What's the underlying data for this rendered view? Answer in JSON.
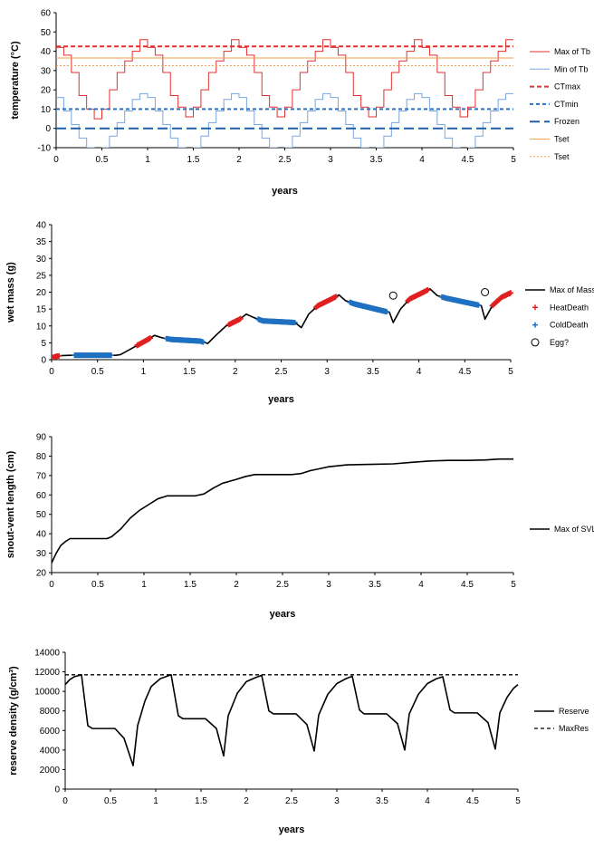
{
  "chart_data": [
    {
      "type": "line",
      "xlabel": "years",
      "ylabel": "temperature (°C)",
      "xlim": [
        0,
        5
      ],
      "ylim": [
        -10,
        60
      ],
      "xticks": [
        "0",
        "0.5",
        "1",
        "1.5",
        "2",
        "2.5",
        "3",
        "3.5",
        "4",
        "4.5",
        "5"
      ],
      "yticks": [
        "-10",
        "0",
        "10",
        "20",
        "30",
        "40",
        "50",
        "60"
      ],
      "legend_position": "right",
      "series": [
        {
          "name": "Max of Tb",
          "legend_label": "Max of Tb",
          "style": "step",
          "color": "#e03030",
          "x": [
            0,
            0.0833,
            0.1667,
            0.25,
            0.3333,
            0.4167,
            0.5,
            0.5833,
            0.6667,
            0.75,
            0.8333,
            0.9167,
            1.0,
            1.0833,
            1.1667,
            1.25,
            1.3333,
            1.4167,
            1.5,
            1.5833,
            1.6667,
            1.75,
            1.8333,
            1.9167,
            2.0,
            2.0833,
            2.1667,
            2.25,
            2.3333,
            2.4167,
            2.5,
            2.5833,
            2.6667,
            2.75,
            2.8333,
            2.9167,
            3.0,
            3.0833,
            3.1667,
            3.25,
            3.3333,
            3.4167,
            3.5,
            3.5833,
            3.6667,
            3.75,
            3.8333,
            3.9167,
            4.0,
            4.0833,
            4.1667,
            4.25,
            4.3333,
            4.4167,
            4.5,
            4.5833,
            4.6667,
            4.75,
            4.8333,
            4.9167,
            5.0
          ],
          "y": [
            42,
            38,
            29,
            17,
            10,
            5,
            10,
            20,
            29,
            35,
            40,
            46,
            42,
            38,
            29,
            17,
            11,
            6,
            11,
            20,
            29,
            35,
            40,
            46,
            42,
            38,
            29,
            17,
            11,
            6,
            11,
            20,
            29,
            35,
            40,
            46,
            42,
            38,
            29,
            17,
            11,
            6,
            11,
            20,
            29,
            35,
            40,
            46,
            42,
            38,
            29,
            17,
            11,
            6,
            11,
            20,
            29,
            35,
            40,
            46,
            46
          ]
        },
        {
          "name": "Min of Tb",
          "legend_label": "Min of Tb",
          "style": "step",
          "color": "#7aa6e0",
          "x": [
            0,
            0.0833,
            0.1667,
            0.25,
            0.3333,
            0.4167,
            0.5,
            0.5833,
            0.6667,
            0.75,
            0.8333,
            0.9167,
            1.0,
            1.0833,
            1.1667,
            1.25,
            1.3333,
            1.4167,
            1.5,
            1.5833,
            1.6667,
            1.75,
            1.8333,
            1.9167,
            2.0,
            2.0833,
            2.1667,
            2.25,
            2.3333,
            2.4167,
            2.5,
            2.5833,
            2.6667,
            2.75,
            2.8333,
            2.9167,
            3.0,
            3.0833,
            3.1667,
            3.25,
            3.3333,
            3.4167,
            3.5,
            3.5833,
            3.6667,
            3.75,
            3.8333,
            3.9167,
            4.0,
            4.0833,
            4.1667,
            4.25,
            4.3333,
            4.4167,
            4.5,
            4.5833,
            4.6667,
            4.75,
            4.8333,
            4.9167,
            5.0
          ],
          "y": [
            16,
            9,
            2,
            -5,
            -10,
            -13,
            -10,
            -4,
            3,
            9,
            15,
            18,
            16,
            9,
            2,
            -5,
            -10,
            -13,
            -10,
            -4,
            3,
            9,
            15,
            18,
            16,
            9,
            2,
            -5,
            -10,
            -13,
            -10,
            -4,
            3,
            9,
            15,
            18,
            16,
            9,
            2,
            -5,
            -10,
            -13,
            -10,
            -4,
            3,
            9,
            15,
            18,
            16,
            9,
            2,
            -5,
            -10,
            -13,
            -10,
            -4,
            3,
            9,
            15,
            18,
            18
          ]
        },
        {
          "name": "CTmax",
          "legend_label": "CTmax",
          "style": "hline",
          "dash": "5,3",
          "width": 2,
          "color": "#e03030",
          "y": 42.5
        },
        {
          "name": "CTmin",
          "legend_label": "CTmin",
          "style": "hline",
          "dash": "4,3",
          "width": 2,
          "color": "#2a6fc0",
          "y": 10
        },
        {
          "name": "Frozen",
          "legend_label": "Frozen",
          "style": "hline",
          "dash": "11,5",
          "width": 2,
          "color": "#1f5fa8",
          "y": 0
        },
        {
          "name": "Tset",
          "legend_label": "Tset",
          "style": "hline",
          "dash": "",
          "width": 1,
          "color": "#f0a050",
          "y": 36.5
        },
        {
          "name": "Tset",
          "legend_label": "Tset",
          "style": "hline",
          "dash": "2,2",
          "width": 1,
          "color": "#f0a050",
          "y": 32.5
        }
      ]
    },
    {
      "type": "line",
      "xlabel": "years",
      "ylabel": "wet mass (g)",
      "xlim": [
        0,
        5
      ],
      "ylim": [
        0,
        40
      ],
      "xticks": [
        "0",
        "0.5",
        "1",
        "1.5",
        "2",
        "2.5",
        "3",
        "3.5",
        "4",
        "4.5",
        "5"
      ],
      "yticks": [
        "0",
        "5",
        "10",
        "15",
        "20",
        "25",
        "30",
        "35",
        "40"
      ],
      "legend_position": "right",
      "series": [
        {
          "name": "Max of Mass",
          "legend_label": "Max of Mass",
          "style": "line",
          "color": "#000000",
          "x": [
            0,
            0.05,
            0.1,
            0.2,
            0.7,
            0.75,
            0.85,
            0.95,
            1.05,
            1.12,
            1.2,
            1.3,
            1.62,
            1.7,
            1.8,
            1.9,
            2.05,
            2.12,
            2.2,
            2.3,
            2.65,
            2.72,
            2.8,
            2.9,
            3.05,
            3.13,
            3.2,
            3.3,
            3.68,
            3.72,
            3.8,
            3.9,
            4.05,
            4.12,
            4.2,
            4.3,
            4.68,
            4.72,
            4.8,
            4.9,
            5.0
          ],
          "y": [
            0.5,
            1.0,
            1.2,
            1.3,
            1.3,
            1.5,
            3.0,
            4.5,
            6.0,
            7.2,
            6.5,
            6.0,
            5.5,
            4.8,
            7.5,
            10.0,
            12.0,
            13.5,
            12.5,
            11.5,
            11.0,
            9.5,
            13.5,
            16.0,
            18.0,
            19.2,
            17.5,
            16.5,
            14.0,
            11.0,
            15.0,
            18.0,
            20.0,
            21.0,
            19.0,
            18.2,
            16.0,
            12.0,
            16.0,
            18.5,
            19.8
          ]
        },
        {
          "name": "HeatDeath",
          "legend_label": "HeatDeath",
          "style": "markers",
          "marker": "plus",
          "color": "#e02020",
          "ranges": [
            [
              0,
              0.08
            ],
            [
              0.93,
              1.08
            ],
            [
              1.93,
              2.06
            ],
            [
              2.88,
              3.1
            ],
            [
              3.88,
              4.1
            ],
            [
              4.8,
              5.0
            ]
          ]
        },
        {
          "name": "ColdDeath",
          "legend_label": "ColdDeath",
          "style": "markers",
          "marker": "plus",
          "color": "#1f70c0",
          "ranges": [
            [
              0.25,
              0.65
            ],
            [
              1.25,
              1.65
            ],
            [
              2.25,
              2.65
            ],
            [
              3.25,
              3.65
            ],
            [
              3.3,
              3.65
            ],
            [
              4.25,
              4.65
            ]
          ]
        },
        {
          "name": "Egg?",
          "legend_label": "Egg?",
          "style": "points",
          "marker": "circle",
          "color": "#000000",
          "x": [
            3.72,
            4.72
          ],
          "y": [
            19,
            20
          ]
        }
      ]
    },
    {
      "type": "line",
      "xlabel": "years",
      "ylabel": "snout-vent length (cm)",
      "xlim": [
        0,
        5
      ],
      "ylim": [
        20,
        90
      ],
      "xticks": [
        "0",
        "0.5",
        "1",
        "1.5",
        "2",
        "2.5",
        "3",
        "3.5",
        "4",
        "4.5",
        "5"
      ],
      "yticks": [
        "20",
        "30",
        "40",
        "50",
        "60",
        "70",
        "80",
        "90"
      ],
      "legend_position": "right",
      "series": [
        {
          "name": "Max of SVL",
          "legend_label": "Max of SVL",
          "style": "line",
          "color": "#000000",
          "x": [
            0,
            0.05,
            0.1,
            0.15,
            0.2,
            0.3,
            0.6,
            0.65,
            0.75,
            0.85,
            0.95,
            1.05,
            1.15,
            1.25,
            1.55,
            1.65,
            1.75,
            1.85,
            2.0,
            2.1,
            2.2,
            2.3,
            2.6,
            2.7,
            2.8,
            2.9,
            3.0,
            3.2,
            3.5,
            3.7,
            3.9,
            4.1,
            4.3,
            4.5,
            4.7,
            4.85,
            5.0
          ],
          "y": [
            25,
            30,
            34,
            36,
            37.5,
            37.5,
            37.5,
            38.5,
            42.5,
            48,
            52,
            55,
            58,
            59.5,
            59.5,
            60.5,
            63.5,
            66,
            68,
            69.5,
            70.5,
            70.5,
            70.5,
            71,
            72.5,
            73.5,
            74.5,
            75.5,
            75.8,
            76,
            76.8,
            77.5,
            77.8,
            77.8,
            78,
            78.5,
            78.5
          ]
        }
      ]
    },
    {
      "type": "line",
      "xlabel": "years",
      "ylabel": "reserve density (g/cm³)",
      "xlim": [
        0,
        5
      ],
      "ylim": [
        0,
        14000
      ],
      "xticks": [
        "0",
        "0.5",
        "1",
        "1.5",
        "2",
        "2.5",
        "3",
        "3.5",
        "4",
        "4.5",
        "5"
      ],
      "yticks": [
        "0",
        "2000",
        "4000",
        "6000",
        "8000",
        "10000",
        "12000",
        "14000"
      ],
      "legend_position": "right",
      "series": [
        {
          "name": "Reserve",
          "legend_label": "Reserve",
          "style": "line",
          "color": "#000000",
          "x": [
            0,
            0.05,
            0.1,
            0.18,
            0.25,
            0.3,
            0.55,
            0.65,
            0.75,
            0.8,
            0.88,
            0.95,
            1.05,
            1.17,
            1.25,
            1.3,
            1.55,
            1.67,
            1.75,
            1.8,
            1.9,
            2.0,
            2.1,
            2.17,
            2.25,
            2.3,
            2.55,
            2.67,
            2.75,
            2.8,
            2.9,
            3.0,
            3.1,
            3.17,
            3.25,
            3.3,
            3.55,
            3.67,
            3.75,
            3.8,
            3.9,
            4.0,
            4.1,
            4.17,
            4.25,
            4.3,
            4.55,
            4.67,
            4.75,
            4.8,
            4.88,
            4.95,
            5.0
          ],
          "y": [
            10700,
            11200,
            11500,
            11700,
            6500,
            6200,
            6200,
            5200,
            2400,
            6500,
            9000,
            10500,
            11300,
            11700,
            7500,
            7200,
            7200,
            6200,
            3400,
            7500,
            9800,
            11000,
            11400,
            11650,
            8000,
            7700,
            7700,
            6600,
            3900,
            7600,
            9700,
            10800,
            11300,
            11550,
            8100,
            7700,
            7700,
            6700,
            4000,
            7700,
            9700,
            10800,
            11300,
            11500,
            8100,
            7800,
            7800,
            6800,
            4100,
            7800,
            9400,
            10300,
            10700
          ]
        },
        {
          "name": "MaxReserve",
          "legend_label": "MaxRes",
          "style": "hline",
          "dash": "4,3",
          "width": 1.3,
          "color": "#000000",
          "y": 11700
        }
      ]
    }
  ]
}
